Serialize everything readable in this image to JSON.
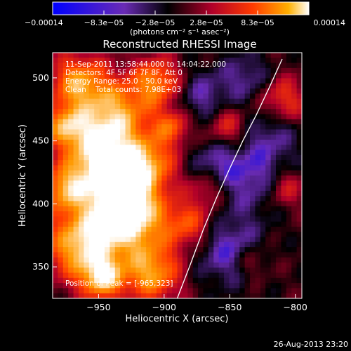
{
  "chart_data": {
    "type": "heatmap",
    "title": "Reconstructed RHESSI Image",
    "xlabel": "Heliocentric X (arcsec)",
    "ylabel": "Heliocentric Y (arcsec)",
    "xlim": [
      -985,
      -795
    ],
    "ylim": [
      325,
      520
    ],
    "x_ticks": [
      -950,
      -900,
      -850,
      -800
    ],
    "y_ticks": [
      350,
      400,
      450,
      500
    ],
    "x_tick_labels": [
      "−950",
      "−900",
      "−850",
      "−800"
    ],
    "y_tick_labels": [
      "350",
      "400",
      "450",
      "500"
    ],
    "annotations": [
      "11-Sep-2011 13:58:44.000 to 14:04:22.000",
      "Detectors: 4F 5F 6F 7F 8F, Att 0",
      "Energy Range: 25.0 - 50.0 keV",
      "Clean    Total counts: 7.98E+03",
      "Position of Peak = [-965,323]"
    ],
    "colorbar": {
      "min": -0.00014,
      "max": 0.00014,
      "tick_labels": [
        "−0.00014",
        "−8.3e−05",
        "−2.8e−05",
        "2.8e−05",
        "8.3e−05",
        "0.00014"
      ],
      "unit": "(photons cm⁻² s⁻¹ asec⁻²)"
    },
    "limb_curve": {
      "x": [
        -890,
        -880,
        -870,
        -860,
        -850,
        -840,
        -830,
        -820,
        -810
      ],
      "y": [
        325,
        352,
        380,
        405,
        428,
        450,
        470,
        492,
        515
      ]
    },
    "grid": false,
    "colormap": [
      "#0000ff",
      "#6a2bb5",
      "#000000",
      "#b0002a",
      "#ff3a00",
      "#ff9a00",
      "#ffffff"
    ]
  },
  "footer": {
    "timestamp": "26-Aug-2013 23:20"
  }
}
